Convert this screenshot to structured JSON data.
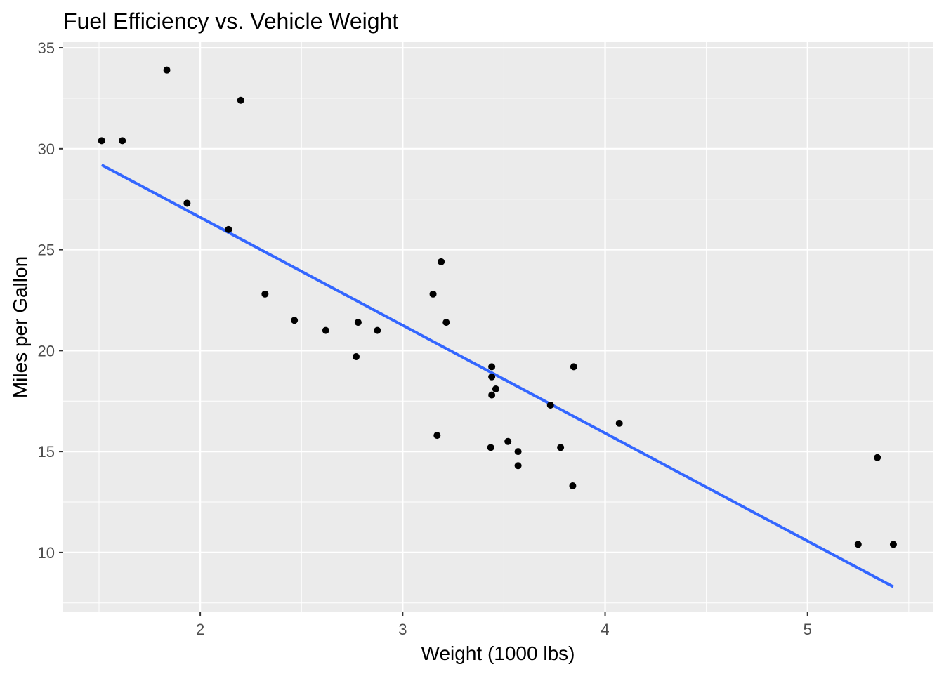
{
  "chart_data": {
    "type": "scatter",
    "title": "Fuel Efficiency vs. Vehicle Weight",
    "xlabel": "Weight (1000 lbs)",
    "ylabel": "Miles per Gallon",
    "xlim": [
      1.323,
      5.622
    ],
    "ylim": [
      7.04,
      35.28
    ],
    "xticks": [
      2,
      3,
      4,
      5
    ],
    "yticks": [
      10,
      15,
      20,
      25,
      30,
      35
    ],
    "grid": true,
    "points": {
      "x": [
        2.62,
        2.875,
        2.32,
        3.215,
        3.44,
        3.46,
        3.57,
        3.19,
        3.15,
        3.44,
        3.44,
        4.07,
        3.73,
        3.78,
        5.25,
        5.424,
        5.345,
        2.2,
        1.615,
        1.835,
        2.465,
        3.52,
        3.435,
        3.84,
        3.845,
        1.935,
        2.14,
        1.513,
        3.17,
        2.77,
        3.57,
        2.78
      ],
      "y": [
        21.0,
        21.0,
        22.8,
        21.4,
        18.7,
        18.1,
        14.3,
        24.4,
        22.8,
        19.2,
        17.8,
        16.4,
        17.3,
        15.2,
        10.4,
        10.4,
        14.7,
        32.4,
        30.4,
        33.9,
        21.5,
        15.5,
        15.2,
        13.3,
        19.2,
        27.3,
        26.0,
        30.4,
        15.8,
        19.7,
        15.0,
        21.4
      ]
    },
    "fit_line": {
      "intercept": 37.285,
      "slope": -5.344,
      "x_range": [
        1.513,
        5.424
      ]
    },
    "colors": {
      "panel": "#EBEBEB",
      "grid": "#FFFFFF",
      "points": "#000000",
      "line": "#3366FF"
    }
  }
}
